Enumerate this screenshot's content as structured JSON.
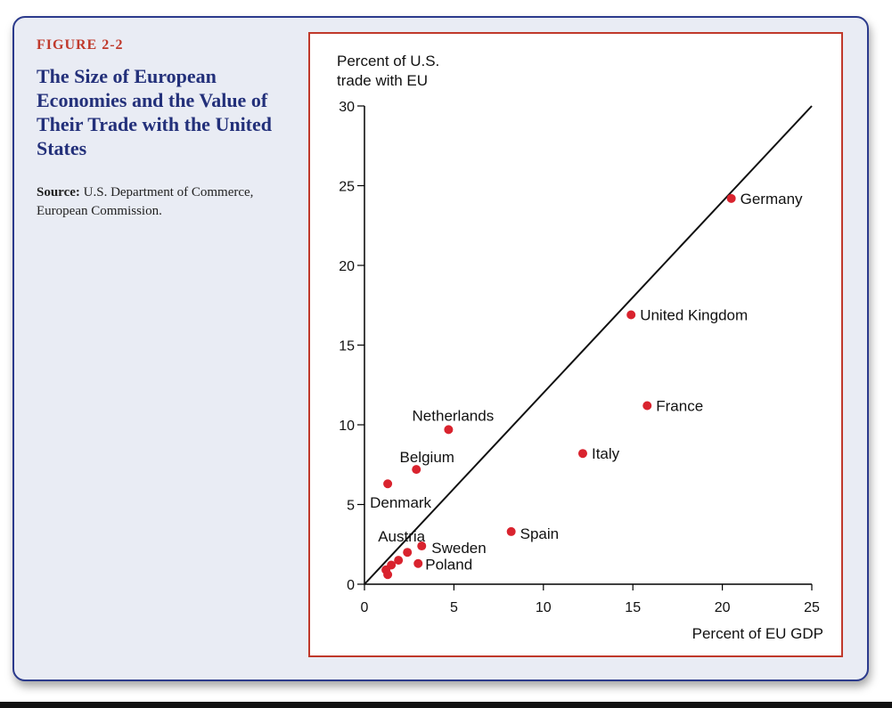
{
  "figure": {
    "label": "FIGURE 2-2",
    "title": "The Size of European Economies and the Value of Their Trade with the United States",
    "source_label": "Source:",
    "source_text": " U.S. Department of Commerce, European Commission."
  },
  "colors": {
    "title": "#23307a",
    "label": "#c0392b",
    "frame": "#2b3a8c",
    "point": "#d9232e"
  },
  "chart_data": {
    "type": "scatter",
    "ylabel_lines": [
      "Percent of U.S.",
      "trade with EU"
    ],
    "xlabel": "Percent of EU GDP",
    "xlim": [
      0,
      25
    ],
    "ylim": [
      0,
      30
    ],
    "xticks": [
      0,
      5,
      10,
      15,
      20,
      25
    ],
    "yticks": [
      0,
      5,
      10,
      15,
      20,
      25,
      30
    ],
    "grid": false,
    "diagonal_line": [
      [
        0,
        0
      ],
      [
        25,
        30
      ]
    ],
    "points": [
      {
        "label": "Germany",
        "x": 20.5,
        "y": 24.2
      },
      {
        "label": "United Kingdom",
        "x": 14.9,
        "y": 16.9
      },
      {
        "label": "France",
        "x": 15.8,
        "y": 11.2
      },
      {
        "label": "Italy",
        "x": 12.2,
        "y": 8.2
      },
      {
        "label": "Netherlands",
        "x": 4.7,
        "y": 9.7
      },
      {
        "label": "Belgium",
        "x": 2.9,
        "y": 7.2
      },
      {
        "label": "Denmark",
        "x": 1.3,
        "y": 6.3
      },
      {
        "label": "Spain",
        "x": 8.2,
        "y": 3.3
      },
      {
        "label": "Austria",
        "x": 2.4,
        "y": 2.0
      },
      {
        "label": "Sweden",
        "x": 3.2,
        "y": 2.4
      },
      {
        "label": "Poland",
        "x": 3.0,
        "y": 1.3
      },
      {
        "label": "",
        "x": 1.9,
        "y": 1.5
      },
      {
        "label": "",
        "x": 1.5,
        "y": 1.2
      },
      {
        "label": "",
        "x": 1.2,
        "y": 0.9
      },
      {
        "label": "",
        "x": 1.3,
        "y": 0.6
      }
    ]
  }
}
